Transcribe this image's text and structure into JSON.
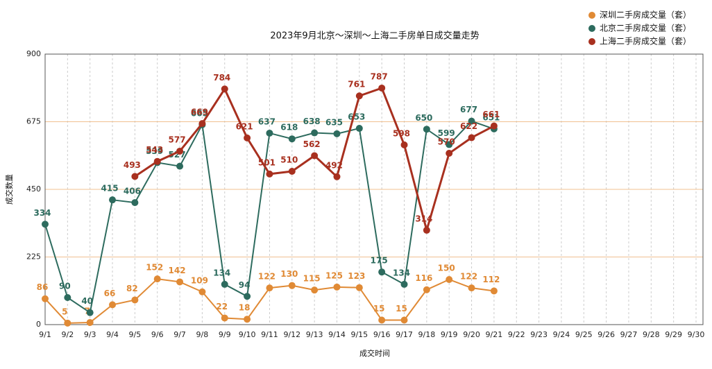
{
  "chart_data": {
    "type": "line",
    "title": "2023年9月北京～深圳～上海二手房单日成交量走势",
    "x_label": "成交时间",
    "y_label": "成交数量",
    "categories": [
      "9/1",
      "9/2",
      "9/3",
      "9/4",
      "9/5",
      "9/6",
      "9/7",
      "9/8",
      "9/9",
      "9/10",
      "9/11",
      "9/12",
      "9/13",
      "9/14",
      "9/15",
      "9/16",
      "9/17",
      "9/18",
      "9/19",
      "9/20",
      "9/21",
      "9/22",
      "9/23",
      "9/24",
      "9/25",
      "9/26",
      "9/27",
      "9/28",
      "9/29",
      "9/30"
    ],
    "ylim": [
      0,
      900
    ],
    "yticks": [
      0,
      225,
      450,
      675,
      900
    ],
    "grid": true,
    "legend": "top-right",
    "series": [
      {
        "name": "深圳二手房成交量（套）",
        "color": "#e08a35",
        "values": [
          86,
          5,
          7,
          66,
          82,
          152,
          142,
          109,
          22,
          18,
          122,
          130,
          115,
          125,
          123,
          15,
          15,
          116,
          150,
          122,
          112,
          null,
          null,
          null,
          null,
          null,
          null,
          null,
          null,
          null
        ]
      },
      {
        "name": "北京二手房成交量（套）",
        "color": "#2d6b5e",
        "values": [
          334,
          90,
          40,
          415,
          406,
          539,
          527,
          665,
          134,
          94,
          637,
          618,
          638,
          635,
          653,
          175,
          134,
          650,
          599,
          677,
          651,
          null,
          null,
          null,
          null,
          null,
          null,
          null,
          null,
          null
        ]
      },
      {
        "name": "上海二手房成交量（套）",
        "color": "#a8301f",
        "values": [
          null,
          null,
          null,
          null,
          493,
          543,
          577,
          669,
          784,
          621,
          501,
          510,
          562,
          492,
          761,
          787,
          598,
          314,
          570,
          622,
          661,
          null,
          null,
          null,
          null,
          null,
          null,
          null,
          null,
          null
        ]
      }
    ]
  }
}
